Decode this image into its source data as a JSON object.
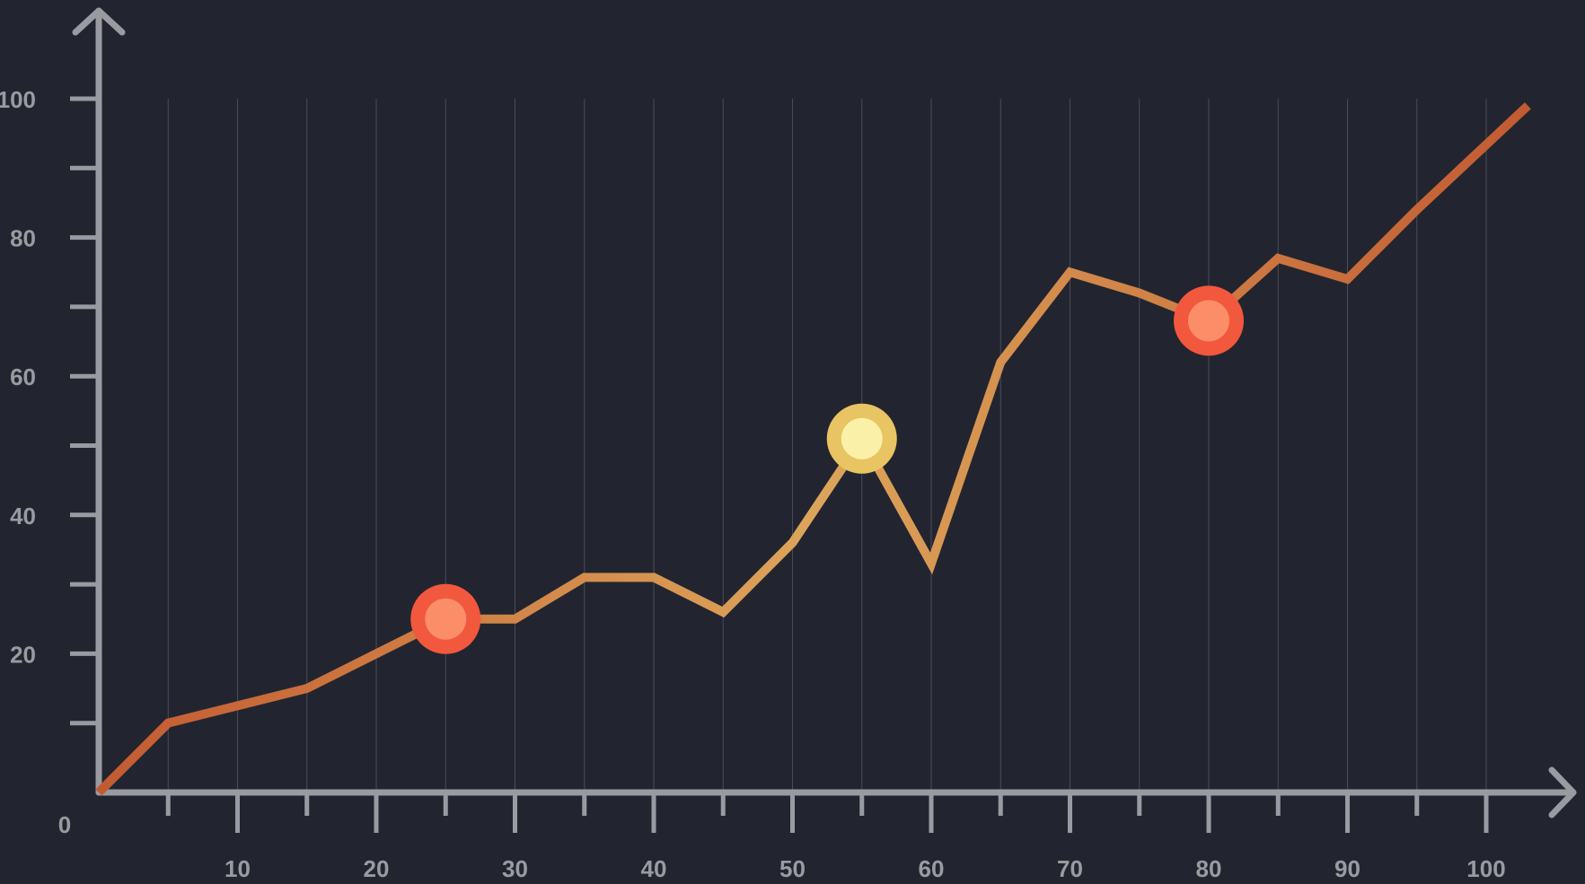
{
  "chart_data": {
    "type": "line",
    "title": "",
    "xlabel": "",
    "ylabel": "",
    "origin_label": "0",
    "xlim": [
      0,
      103
    ],
    "ylim": [
      0,
      100
    ],
    "x_ticks": [
      10,
      20,
      30,
      40,
      50,
      60,
      70,
      80,
      90,
      100
    ],
    "y_ticks": [
      20,
      40,
      60,
      80,
      100
    ],
    "x_minor_step": 5,
    "y_minor_step": 10,
    "grid": true,
    "legend": "none",
    "series": [
      {
        "points": [
          {
            "x": 0,
            "y": 0
          },
          {
            "x": 5,
            "y": 10
          },
          {
            "x": 10,
            "y": 12.5
          },
          {
            "x": 15,
            "y": 15
          },
          {
            "x": 20,
            "y": 20
          },
          {
            "x": 25,
            "y": 25
          },
          {
            "x": 30,
            "y": 25
          },
          {
            "x": 35,
            "y": 31
          },
          {
            "x": 40,
            "y": 31
          },
          {
            "x": 45,
            "y": 26
          },
          {
            "x": 50,
            "y": 36
          },
          {
            "x": 55,
            "y": 51
          },
          {
            "x": 60,
            "y": 33
          },
          {
            "x": 65,
            "y": 62
          },
          {
            "x": 70,
            "y": 75
          },
          {
            "x": 75,
            "y": 72
          },
          {
            "x": 80,
            "y": 68
          },
          {
            "x": 85,
            "y": 77
          },
          {
            "x": 90,
            "y": 74
          },
          {
            "x": 95,
            "y": 84
          },
          {
            "x": 103,
            "y": 99
          }
        ]
      }
    ],
    "highlights": [
      {
        "x": 25,
        "y": 25,
        "style": "red"
      },
      {
        "x": 55,
        "y": 51,
        "style": "yellow"
      },
      {
        "x": 80,
        "y": 68,
        "style": "red"
      }
    ]
  },
  "colors": {
    "background": "#22252f",
    "axis": "#9a9ba0",
    "grid": "#4a4d58",
    "tick_label": "#9a9ba0",
    "line_gradient": [
      "#c35a32",
      "#dca55a",
      "#c35a32"
    ],
    "marker_red_ring": "#f2583e",
    "marker_red_fill": "#fb8d68",
    "marker_yellow_ring": "#e9c463",
    "marker_yellow_fill": "#fbf0a8"
  }
}
